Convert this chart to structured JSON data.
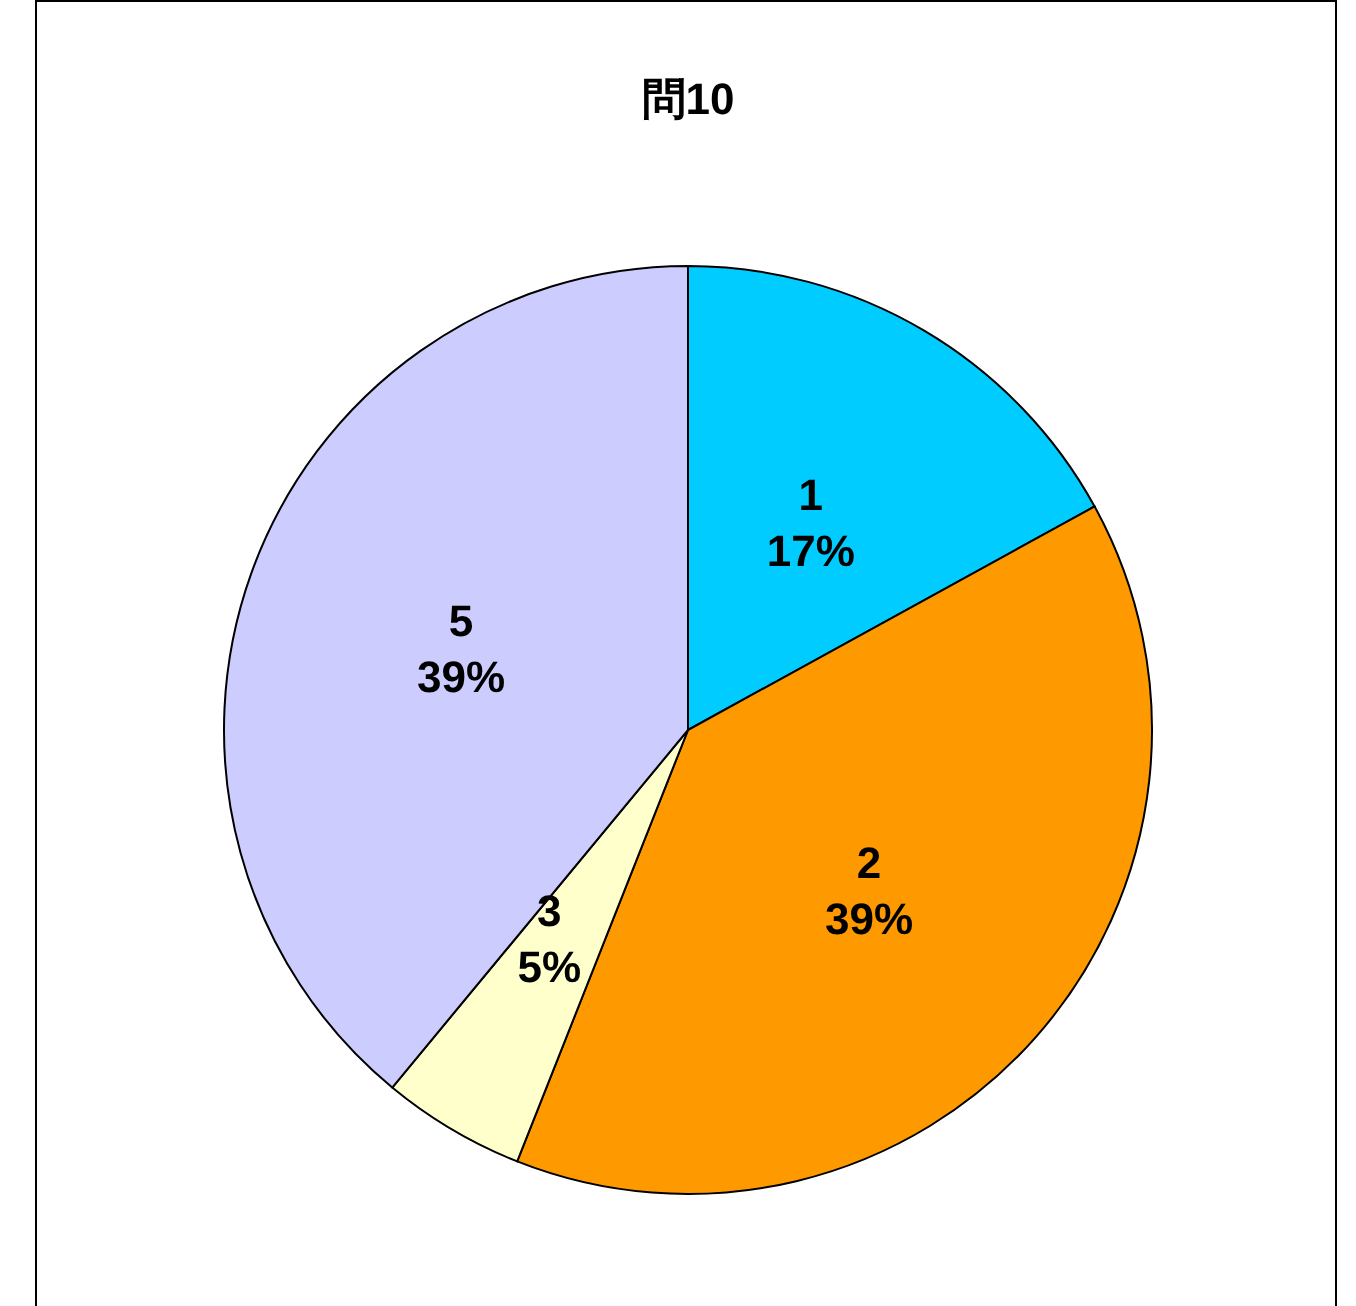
{
  "chart_data": {
    "type": "pie",
    "title": "問10",
    "categories": [
      "1",
      "2",
      "3",
      "5"
    ],
    "values": [
      17,
      39,
      5,
      39
    ],
    "colors": [
      "#00ccff",
      "#ff9900",
      "#ffffcc",
      "#ccccff"
    ],
    "value_labels": [
      "17%",
      "39%",
      "5%",
      "39%"
    ],
    "legend": false
  }
}
